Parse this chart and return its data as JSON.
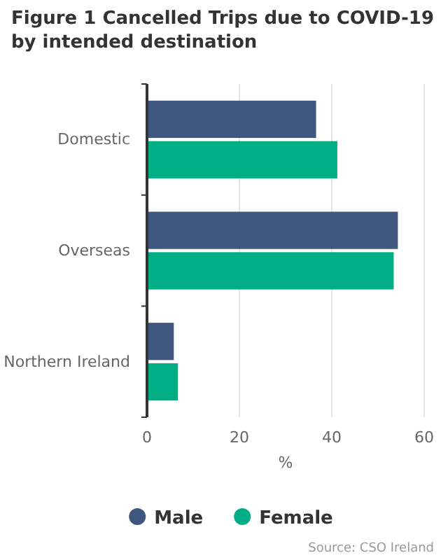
{
  "chart_data": {
    "type": "bar",
    "orientation": "horizontal",
    "title": "Figure 1 Cancelled Trips due to COVID-19 by intended destination",
    "xlabel": "%",
    "categories": [
      "Domestic",
      "Overseas",
      "Northern Ireland"
    ],
    "series": [
      {
        "name": "Male",
        "color": "#3f567f",
        "values": [
          36.6,
          54.3,
          5.8
        ]
      },
      {
        "name": "Female",
        "color": "#00ae86",
        "values": [
          41.2,
          53.4,
          6.7
        ]
      }
    ],
    "xlim": [
      0,
      60
    ],
    "xticks": [
      0,
      20,
      40,
      60
    ],
    "grid": "x",
    "legend": "bottom",
    "annotations": [
      "Source: CSO Ireland"
    ]
  }
}
